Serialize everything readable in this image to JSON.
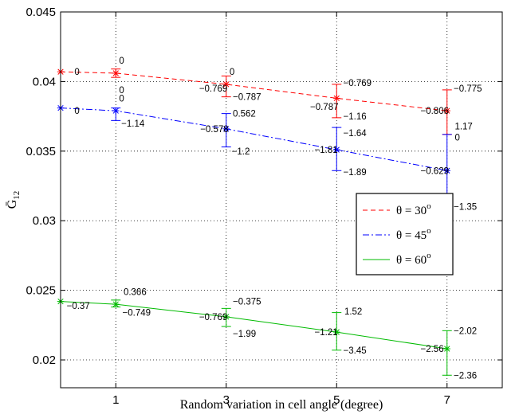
{
  "chart_data": {
    "type": "line",
    "xlabel": "Random variation in cell angle (degree)",
    "ylabel": "Ḡ 12",
    "ylabel_main": "Ḡ",
    "ylabel_sub": "12",
    "xlim": [
      0,
      8
    ],
    "ylim": [
      0.018,
      0.045
    ],
    "xticks": [
      1,
      3,
      5,
      7
    ],
    "xtick_labels": [
      "1",
      "3",
      "5",
      "7"
    ],
    "yticks": [
      0.02,
      0.025,
      0.03,
      0.035,
      0.04,
      0.045
    ],
    "ytick_labels": [
      "0.02",
      "0.025",
      "0.03",
      "0.035",
      "0.04",
      "0.045"
    ],
    "grid": "dotted",
    "legend_position": "lower-right inside, mid height",
    "series": [
      {
        "name": "θ = 30°",
        "legend_main": "θ = 30",
        "legend_sup": "o",
        "color": "#ff0000",
        "dash": "dashed",
        "x": [
          0,
          1,
          3,
          5,
          7
        ],
        "y": [
          0.0407,
          0.0406,
          0.0398,
          0.0388,
          0.0379
        ],
        "err_low": [
          0,
          0.0403,
          0.0389,
          0.0374,
          0.0362
        ],
        "err_high": [
          0,
          0.0409,
          0.0404,
          0.0398,
          0.0394
        ],
        "annotations": [
          {
            "x": 0,
            "y": 0.0407,
            "text": "0",
            "dx": 0.25,
            "dy": 0.0
          },
          {
            "x": 1,
            "y": 0.0406,
            "text": "0",
            "dx": 0.06,
            "dy": 0.0009
          },
          {
            "x": 1,
            "y": 0.0406,
            "text": "0",
            "dx": 0.06,
            "dy": -0.0012
          },
          {
            "x": 3,
            "y": 0.0398,
            "text": "0",
            "dx": 0.06,
            "dy": 0.0009
          },
          {
            "x": 3,
            "y": 0.0398,
            "text": "−0.769",
            "dx": -0.49,
            "dy": -0.0003
          },
          {
            "x": 3,
            "y": 0.0398,
            "text": "−0.787",
            "dx": 0.12,
            "dy": -0.0009
          },
          {
            "x": 5,
            "y": 0.0388,
            "text": "−0.769",
            "dx": 0.12,
            "dy": 0.0011
          },
          {
            "x": 5,
            "y": 0.0388,
            "text": "−0.787",
            "dx": -0.48,
            "dy": -0.0006
          },
          {
            "x": 5,
            "y": 0.0388,
            "text": "−1.16",
            "dx": 0.12,
            "dy": -0.0013
          },
          {
            "x": 7,
            "y": 0.0379,
            "text": "−0.775",
            "dx": 0.12,
            "dy": 0.0016
          },
          {
            "x": 7,
            "y": 0.0379,
            "text": "−0.806",
            "dx": -0.48,
            "dy": 0.0
          },
          {
            "x": 7,
            "y": 0.0379,
            "text": "1.17",
            "dx": 0.14,
            "dy": -0.0011
          }
        ]
      },
      {
        "name": "θ = 45°",
        "legend_main": "θ = 45",
        "legend_sup": "o",
        "color": "#0000ff",
        "dash": "dashdot",
        "x": [
          0,
          1,
          3,
          5,
          7
        ],
        "y": [
          0.0381,
          0.0379,
          0.0366,
          0.0351,
          0.0336
        ],
        "err_low": [
          0,
          0.0372,
          0.0353,
          0.0336,
          0.0314
        ],
        "err_high": [
          0,
          0.0381,
          0.0377,
          0.0367,
          0.0362
        ],
        "annotations": [
          {
            "x": 0,
            "y": 0.0381,
            "text": "0",
            "dx": 0.25,
            "dy": -0.0002
          },
          {
            "x": 1,
            "y": 0.0379,
            "text": "0",
            "dx": 0.06,
            "dy": 0.0009
          },
          {
            "x": 1,
            "y": 0.0379,
            "text": "−1.14",
            "dx": 0.1,
            "dy": -0.0009
          },
          {
            "x": 3,
            "y": 0.0366,
            "text": "0.562",
            "dx": 0.12,
            "dy": 0.0011
          },
          {
            "x": 3,
            "y": 0.0366,
            "text": "−0.578",
            "dx": -0.47,
            "dy": 0.0
          },
          {
            "x": 3,
            "y": 0.0366,
            "text": "−1.2",
            "dx": 0.1,
            "dy": -0.0016
          },
          {
            "x": 5,
            "y": 0.0351,
            "text": "−1.64",
            "dx": 0.12,
            "dy": 0.0012
          },
          {
            "x": 5,
            "y": 0.0351,
            "text": "−1.81",
            "dx": -0.4,
            "dy": 0.0
          },
          {
            "x": 5,
            "y": 0.0351,
            "text": "−1.89",
            "dx": 0.12,
            "dy": -0.0016
          },
          {
            "x": 7,
            "y": 0.0336,
            "text": "0",
            "dx": 0.14,
            "dy": 0.0024
          },
          {
            "x": 7,
            "y": 0.0336,
            "text": "−0.629",
            "dx": -0.48,
            "dy": 0.0
          },
          {
            "x": 7,
            "y": 0.0336,
            "text": "−1.35",
            "dx": 0.12,
            "dy": -0.0026
          }
        ]
      },
      {
        "name": "θ = 60°",
        "legend_main": "θ = 60",
        "legend_sup": "o",
        "color": "#00bb00",
        "dash": "solid",
        "x": [
          0,
          1,
          3,
          5,
          7
        ],
        "y": [
          0.0242,
          0.024,
          0.0231,
          0.022,
          0.0208
        ],
        "err_low": [
          0,
          0.0238,
          0.0224,
          0.0207,
          0.0189
        ],
        "err_high": [
          0,
          0.0243,
          0.0237,
          0.0234,
          0.0221
        ],
        "annotations": [
          {
            "x": 0,
            "y": 0.0242,
            "text": "−0.37",
            "dx": 0.11,
            "dy": -0.0003
          },
          {
            "x": 1,
            "y": 0.024,
            "text": "0.366",
            "dx": 0.14,
            "dy": 0.0009
          },
          {
            "x": 1,
            "y": 0.024,
            "text": "−0.749",
            "dx": 0.12,
            "dy": -0.0006
          },
          {
            "x": 3,
            "y": 0.0231,
            "text": "−0.375",
            "dx": 0.12,
            "dy": 0.0011
          },
          {
            "x": 3,
            "y": 0.0231,
            "text": "−0.769",
            "dx": -0.49,
            "dy": 0.0
          },
          {
            "x": 3,
            "y": 0.0231,
            "text": "−1.99",
            "dx": 0.12,
            "dy": -0.0012
          },
          {
            "x": 5,
            "y": 0.022,
            "text": "1.52",
            "dx": 0.14,
            "dy": 0.0015
          },
          {
            "x": 5,
            "y": 0.022,
            "text": "−1.21",
            "dx": -0.4,
            "dy": 0.0
          },
          {
            "x": 5,
            "y": 0.022,
            "text": "−3.45",
            "dx": 0.12,
            "dy": -0.0013
          },
          {
            "x": 7,
            "y": 0.0208,
            "text": "−2.02",
            "dx": 0.12,
            "dy": 0.0013
          },
          {
            "x": 7,
            "y": 0.0208,
            "text": "−2.56",
            "dx": -0.48,
            "dy": 0.0
          },
          {
            "x": 7,
            "y": 0.0208,
            "text": "−2.36",
            "dx": 0.12,
            "dy": -0.0019
          }
        ]
      }
    ]
  }
}
